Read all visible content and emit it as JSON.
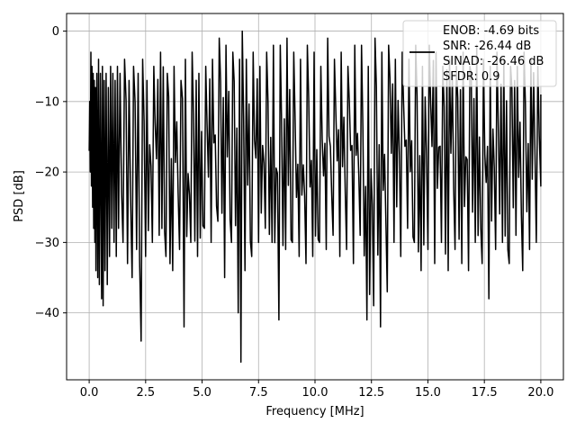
{
  "chart_data": {
    "type": "line",
    "title": "",
    "xlabel": "Frequency [MHz]",
    "ylabel": "PSD [dB]",
    "xlim": [
      -1,
      21
    ],
    "ylim": [
      -49.5,
      2.5
    ],
    "xticks": [
      0.0,
      2.5,
      5.0,
      7.5,
      10.0,
      12.5,
      15.0,
      17.5,
      20.0
    ],
    "xtick_labels": [
      "0.0",
      "2.5",
      "5.0",
      "7.5",
      "10.0",
      "12.5",
      "15.0",
      "17.5",
      "20.0"
    ],
    "yticks": [
      0,
      -10,
      -20,
      -30,
      -40
    ],
    "ytick_labels": [
      "0",
      "−10",
      "−20",
      "−30",
      "−40"
    ],
    "grid": true,
    "legend_position": "top-right",
    "legend_entries": [
      "ENOB: -4.69 bits",
      "SNR: -26.44 dB",
      "SINAD: -26.46 dB",
      "SFDR: 0.9"
    ],
    "series": [
      {
        "color": "#000000",
        "x": [
          0.0,
          0.05,
          0.1,
          0.15,
          0.2,
          0.25,
          0.3,
          0.38,
          0.45,
          0.55,
          0.62,
          0.7,
          0.8,
          0.9,
          1.0,
          1.1,
          1.2,
          1.3,
          1.5,
          1.7,
          1.9,
          2.1,
          2.3,
          2.5,
          2.8,
          3.1,
          3.4,
          3.7,
          4.0,
          4.2,
          4.5,
          4.8,
          5.1,
          5.4,
          5.7,
          6.0,
          6.3,
          6.6,
          6.72,
          6.9,
          7.2,
          7.5,
          7.8,
          8.1,
          8.4,
          8.7,
          9.0,
          9.3,
          9.6,
          9.9,
          10.2,
          10.5,
          10.8,
          11.1,
          11.4,
          11.7,
          12.0,
          12.3,
          12.6,
          12.9,
          13.2,
          13.5,
          13.8,
          14.1,
          14.4,
          14.7,
          15.0,
          15.3,
          15.6,
          15.9,
          16.2,
          16.5,
          16.8,
          17.1,
          17.4,
          17.7,
          18.0,
          18.3,
          18.6,
          18.9,
          19.2,
          19.5,
          19.8,
          20.0
        ],
        "y_min": [
          -17,
          -20,
          -22,
          -25,
          -28,
          -30,
          -34,
          -35,
          -36,
          -38,
          -39,
          -34,
          -36,
          -32,
          -28,
          -30,
          -32,
          -28,
          -30,
          -33,
          -35,
          -31,
          -44,
          -32,
          -30,
          -29,
          -32,
          -34,
          -31,
          -42,
          -30,
          -32,
          -28,
          -30,
          -27,
          -35,
          -30,
          -40,
          -47,
          -34,
          -32,
          -30,
          -28,
          -30,
          -41,
          -31,
          -30,
          -32,
          -33,
          -32,
          -30,
          -31,
          -29,
          -32,
          -31,
          -33,
          -29,
          -41,
          -39,
          -42,
          -37,
          -30,
          -32,
          -28,
          -30,
          -34,
          -31,
          -33,
          -30,
          -34,
          -31,
          -33,
          -34,
          -30,
          -33,
          -38,
          -31,
          -30,
          -33,
          -29,
          -34,
          -31,
          -30,
          -22
        ],
        "y_max": [
          -10,
          -3,
          -5,
          -6,
          -7,
          -8,
          -6,
          -4,
          -6,
          -5,
          -7,
          -6,
          -8,
          -5,
          -6,
          -7,
          -5,
          -6,
          -4,
          -7,
          -5,
          -6,
          -4,
          -7,
          -5,
          -3,
          -6,
          -5,
          -7,
          -4,
          -3,
          -6,
          -5,
          -4,
          -1,
          -2,
          -3,
          -4,
          0,
          -4,
          -3,
          -5,
          -3,
          -2,
          -2,
          -1,
          -3,
          -4,
          -2,
          -3,
          -5,
          -1,
          -4,
          -3,
          -5,
          -2,
          -2,
          -5,
          -1,
          -3,
          -2,
          -4,
          -3,
          -4,
          -2,
          -5,
          -2,
          -3,
          -5,
          -4,
          -5,
          -3,
          -5,
          -2,
          -4,
          -5,
          -3,
          -4,
          -5,
          -5,
          -3,
          -4,
          -5,
          -9
        ]
      }
    ]
  }
}
